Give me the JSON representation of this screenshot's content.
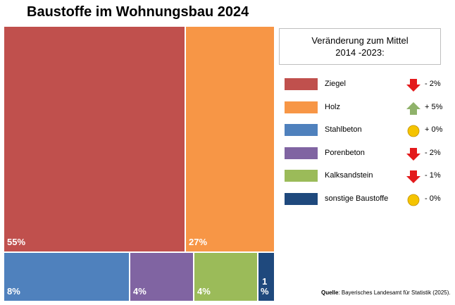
{
  "title": "Baustoffe im Wohnungsbau 2024",
  "legend_header": {
    "line1": "Veränderung zum Mittel",
    "line2": "2014 -2023:"
  },
  "source": {
    "label": "Quelle",
    "text": ": Bayerisches Landesamt für Statistik (2025)."
  },
  "chart_data": {
    "type": "treemap",
    "title": "Baustoffe im Wohnungsbau 2024",
    "unit": "%",
    "items": [
      {
        "name": "Ziegel",
        "value": 55,
        "label": "55%",
        "color": "#c0504d",
        "change": "- 2%",
        "trend": "down",
        "trend_icon": "arrow-down-icon"
      },
      {
        "name": "Holz",
        "value": 27,
        "label": "27%",
        "color": "#f79646",
        "change": "+ 5%",
        "trend": "up",
        "trend_icon": "arrow-up-icon"
      },
      {
        "name": "Stahlbeton",
        "value": 8,
        "label": "8%",
        "color": "#4f81bd",
        "change": "+ 0%",
        "trend": "neutral",
        "trend_icon": "circle-icon"
      },
      {
        "name": "Porenbeton",
        "value": 4,
        "label": "4%",
        "color": "#8064a2",
        "change": "- 2%",
        "trend": "down",
        "trend_icon": "arrow-down-icon"
      },
      {
        "name": "Kalksandstein",
        "value": 4,
        "label": "4%",
        "color": "#9bbb59",
        "change": "- 1%",
        "trend": "down",
        "trend_icon": "arrow-down-icon"
      },
      {
        "name": "sonstige Baustoffe",
        "value": 1,
        "label": "1\n%",
        "color": "#1f497d",
        "change": "- 0%",
        "trend": "neutral",
        "trend_icon": "circle-icon"
      }
    ],
    "trend_colors": {
      "down": "#e31a1c",
      "up": "#8fb26a",
      "neutral": "#f5c400"
    }
  }
}
